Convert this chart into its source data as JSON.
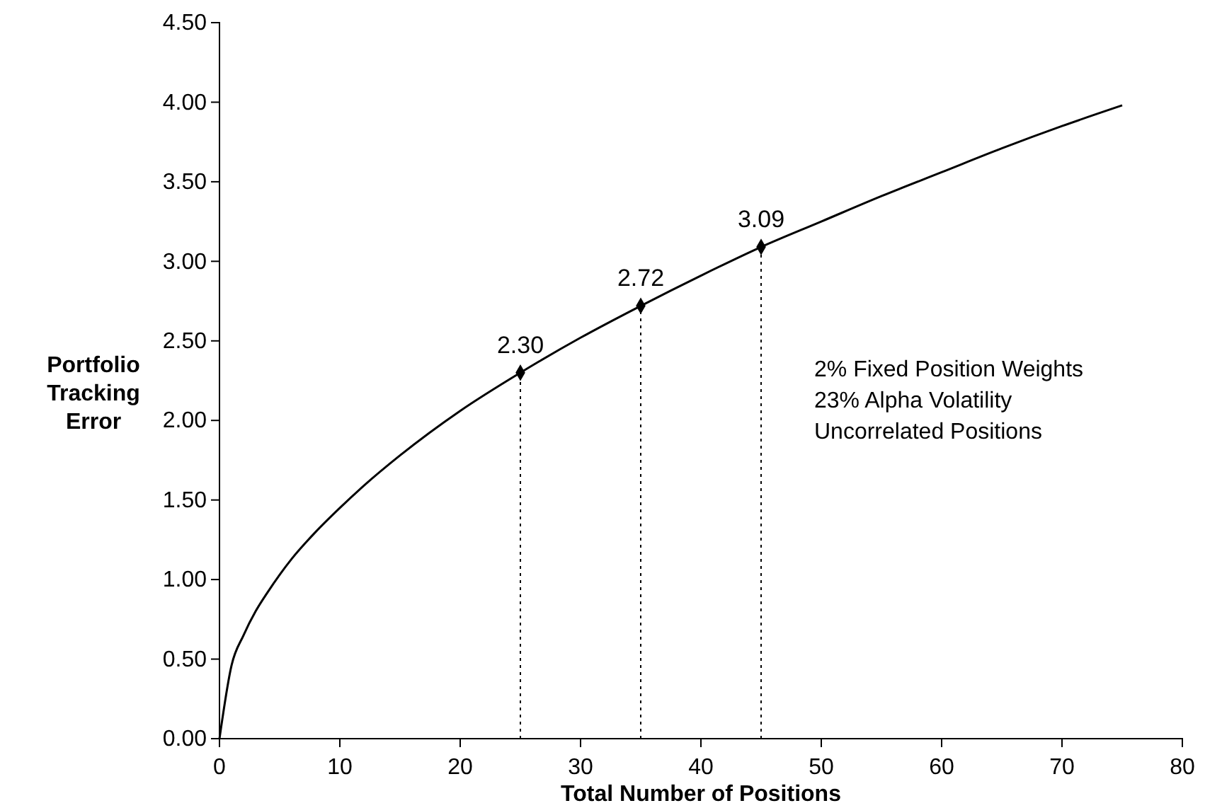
{
  "chart_data": {
    "type": "line",
    "xlabel": "Total Number of Positions",
    "ylabel": "Portfolio Tracking Error",
    "xlim": [
      0,
      80
    ],
    "xticks": [
      0,
      10,
      20,
      30,
      40,
      50,
      60,
      70,
      80
    ],
    "ylim": [
      0,
      4.5
    ],
    "yticks": [
      {
        "value": 0,
        "label": "0.00"
      },
      {
        "value": 0.5,
        "label": "0.50"
      },
      {
        "value": 1,
        "label": "1.00"
      },
      {
        "value": 1.5,
        "label": "1.50"
      },
      {
        "value": 2,
        "label": "2.00"
      },
      {
        "value": 2.5,
        "label": "2.50"
      },
      {
        "value": 3,
        "label": "3.00"
      },
      {
        "value": 3.5,
        "label": "3.50"
      },
      {
        "value": 4,
        "label": "4.00"
      },
      {
        "value": 4.5,
        "label": "4.50"
      }
    ],
    "annotations": [
      "2% Fixed Position Weights",
      "23% Alpha Volatility",
      "Uncorrelated Positions"
    ],
    "series": [
      {
        "color": "#000000",
        "line_style": "solid",
        "x": [
          0,
          1,
          2,
          3,
          4,
          5,
          6,
          8,
          10,
          12,
          15,
          20,
          25,
          30,
          35,
          40,
          45,
          50,
          55,
          60,
          65,
          70,
          75
        ],
        "values": [
          0,
          0.46,
          0.65,
          0.8,
          0.92,
          1.03,
          1.13,
          1.3,
          1.45,
          1.59,
          1.78,
          2.06,
          2.3,
          2.52,
          2.72,
          2.91,
          3.09,
          3.25,
          3.41,
          3.56,
          3.71,
          3.85,
          3.98
        ]
      },
      {
        "type": "lollipop",
        "color": "#000000",
        "marker": "diamond",
        "line_style": "dotted",
        "x": [
          25,
          35,
          45
        ],
        "values": [
          2.3,
          2.72,
          3.09
        ],
        "value_labels": [
          "2.30",
          "2.72",
          "3.09"
        ]
      }
    ]
  }
}
